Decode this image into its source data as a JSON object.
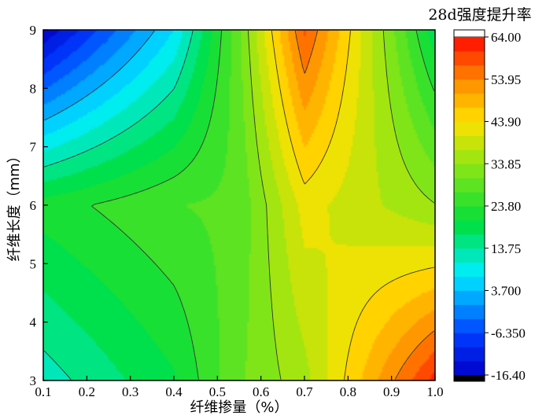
{
  "chart_data": {
    "type": "heatmap",
    "subtype": "filled-contour",
    "xlabel": "纤维掺量（%）",
    "ylabel": "纤维长度（mm）",
    "x_ticks": [
      "0.1",
      "0.2",
      "0.3",
      "0.4",
      "0.5",
      "0.6",
      "0.7",
      "0.8",
      "0.9",
      "1.0"
    ],
    "y_ticks": [
      "3",
      "4",
      "5",
      "6",
      "7",
      "8",
      "9"
    ],
    "xlim": [
      0.1,
      1.0
    ],
    "ylim": [
      3,
      9
    ],
    "x": [
      0.1,
      0.4,
      0.55,
      0.7,
      1.0
    ],
    "y": [
      3,
      6,
      9
    ],
    "z": [
      [
        12,
        20,
        30,
        36,
        62
      ],
      [
        22,
        27,
        28,
        42,
        34
      ],
      [
        -16,
        7,
        30,
        58,
        18
      ]
    ],
    "colorbar": {
      "title": "28d强度提升率",
      "min": -16.4,
      "max": 64.0,
      "ticks": [
        "64.00",
        "53.95",
        "43.90",
        "33.85",
        "23.80",
        "13.75",
        "3.700",
        "-6.350",
        "-16.40"
      ]
    },
    "contour_levels": [
      3.7,
      13.75,
      23.8,
      33.85,
      43.9,
      53.95
    ],
    "grid": false,
    "legend": "colorbar-right"
  }
}
